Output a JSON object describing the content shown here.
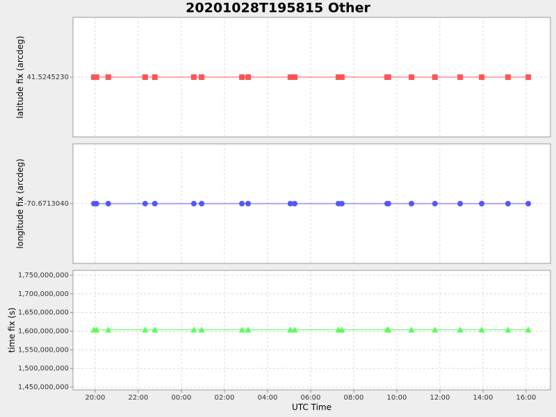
{
  "chart_data": [
    {
      "type": "line",
      "title": "20201028T195815 Other",
      "ylabel": "latitude fix (arcdeg)",
      "color": "#ff5555",
      "marker": "square",
      "x": [
        19.94,
        20.06,
        20.61,
        22.32,
        22.77,
        24.58,
        24.94,
        26.81,
        27.1,
        29.06,
        29.26,
        31.29,
        31.45,
        33.55,
        33.61,
        34.68,
        35.77,
        36.94,
        37.94,
        39.16,
        40.1
      ],
      "values": [
        41.524523,
        41.524523,
        41.524523,
        41.524523,
        41.524523,
        41.524523,
        41.524523,
        41.524523,
        41.524523,
        41.524523,
        41.524523,
        41.524523,
        41.524523,
        41.524523,
        41.524523,
        41.524523,
        41.524523,
        41.524523,
        41.524523,
        41.524523,
        41.524523
      ],
      "xlim": [
        18.97,
        41.13
      ],
      "xticks": [
        20,
        22,
        24,
        26,
        28,
        30,
        32,
        34,
        36,
        38,
        40
      ],
      "ylim": [
        41.524522,
        41.524524
      ],
      "yticks": [
        {
          "value": 41.524523,
          "label": "41.5245230"
        }
      ],
      "grid": true
    },
    {
      "type": "line",
      "ylabel": "longitude fix (arcdeg)",
      "color": "#5555ff",
      "marker": "circle",
      "x": [
        19.94,
        20.06,
        20.61,
        22.32,
        22.77,
        24.58,
        24.94,
        26.81,
        27.1,
        29.06,
        29.26,
        31.29,
        31.45,
        33.55,
        33.61,
        34.68,
        35.77,
        36.94,
        37.94,
        39.16,
        40.1
      ],
      "values": [
        -70.671304,
        -70.671304,
        -70.671304,
        -70.671304,
        -70.671304,
        -70.671304,
        -70.671304,
        -70.671304,
        -70.671304,
        -70.671304,
        -70.671304,
        -70.671304,
        -70.671304,
        -70.671304,
        -70.671304,
        -70.671304,
        -70.671304,
        -70.671304,
        -70.671304,
        -70.671304,
        -70.671304
      ],
      "xlim": [
        18.97,
        41.13
      ],
      "xticks": [
        20,
        22,
        24,
        26,
        28,
        30,
        32,
        34,
        36,
        38,
        40
      ],
      "ylim": [
        -70.671305,
        -70.671303
      ],
      "yticks": [
        {
          "value": -70.671304,
          "label": "-70.6713040"
        }
      ],
      "grid": true
    },
    {
      "type": "line",
      "ylabel": "time fix (s)",
      "xlabel": "UTC Time",
      "color": "#55ff55",
      "marker": "triangle",
      "x": [
        19.94,
        20.06,
        20.61,
        22.32,
        22.77,
        24.58,
        24.94,
        26.81,
        27.1,
        29.06,
        29.26,
        31.29,
        31.45,
        33.55,
        33.61,
        34.68,
        35.77,
        36.94,
        37.94,
        39.16,
        40.1
      ],
      "values": [
        1604000000,
        1604000000,
        1604000000,
        1604000000,
        1604000000,
        1604000000,
        1604000000,
        1604000000,
        1604000000,
        1604000000,
        1604000000,
        1604000000,
        1604000000,
        1604000000,
        1604000000,
        1604000000,
        1604000000,
        1604000000,
        1604000000,
        1604000000,
        1604000000
      ],
      "xlim": [
        18.97,
        41.13
      ],
      "xticks": [
        {
          "value": 20,
          "label": "20:00"
        },
        {
          "value": 22,
          "label": "22:00"
        },
        {
          "value": 24,
          "label": "00:00"
        },
        {
          "value": 26,
          "label": "02:00"
        },
        {
          "value": 28,
          "label": "04:00"
        },
        {
          "value": 30,
          "label": "06:00"
        },
        {
          "value": 32,
          "label": "08:00"
        },
        {
          "value": 34,
          "label": "10:00"
        },
        {
          "value": 36,
          "label": "12:00"
        },
        {
          "value": 38,
          "label": "14:00"
        },
        {
          "value": 40,
          "label": "16:00"
        }
      ],
      "ylim": [
        1442500000,
        1763000000
      ],
      "yticks": [
        {
          "value": 1450000000,
          "label": "1,450,000,000"
        },
        {
          "value": 1500000000,
          "label": "1,500,000,000"
        },
        {
          "value": 1550000000,
          "label": "1,550,000,000"
        },
        {
          "value": 1600000000,
          "label": "1,600,000,000"
        },
        {
          "value": 1650000000,
          "label": "1,650,000,000"
        },
        {
          "value": 1700000000,
          "label": "1,700,000,000"
        },
        {
          "value": 1750000000,
          "label": "1,750,000,000"
        }
      ],
      "grid": true
    }
  ]
}
